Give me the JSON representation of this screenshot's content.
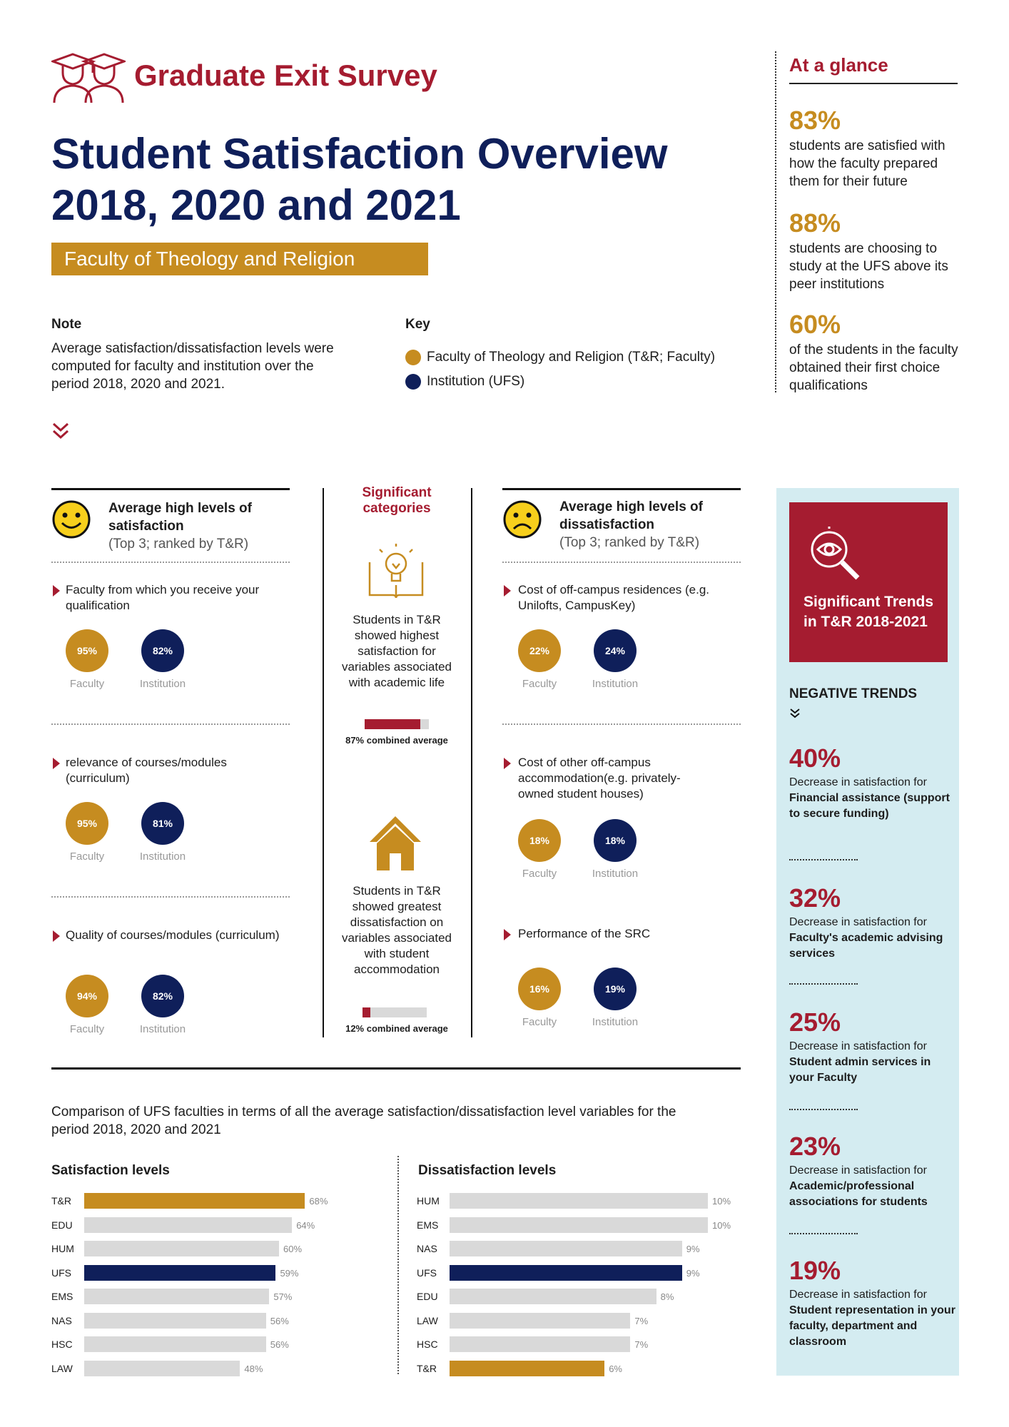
{
  "header": {
    "brand": "Graduate Exit Survey",
    "title_line1": "Student Satisfaction Overview",
    "title_line2": "2018, 2020 and 2021",
    "faculty": "Faculty of Theology and Religion"
  },
  "note": {
    "heading": "Note",
    "text": "Average satisfaction/dissatisfaction levels were computed for faculty and institution over the period 2018, 2020 and 2021."
  },
  "key": {
    "heading": "Key",
    "items": [
      {
        "label": "Faculty of Theology and Religion (T&R; Faculty)",
        "color": "#c68c20"
      },
      {
        "label": "Institution (UFS)",
        "color": "#0f1f5a"
      }
    ]
  },
  "glance": {
    "title": "At a glance",
    "items": [
      {
        "pct": "83%",
        "text": "students are satisfied with how the faculty prepared them for their future"
      },
      {
        "pct": "88%",
        "text": "students are choosing to study at the UFS above its peer institutions"
      },
      {
        "pct": "60%",
        "text": "of the students in the faculty obtained their first choice qualifications"
      }
    ]
  },
  "satisfaction": {
    "heading": "Average high levels of satisfaction",
    "sub": "(Top 3; ranked by T&R)",
    "items": [
      {
        "text": "Faculty from which you receive your qualification",
        "faculty": "95%",
        "institution": "82%"
      },
      {
        "text": "relevance of courses/modules (curriculum)",
        "faculty": "95%",
        "institution": "81%"
      },
      {
        "text": "Quality of courses/modules (curriculum)",
        "faculty": "94%",
        "institution": "82%"
      }
    ],
    "faculty_label": "Faculty",
    "institution_label": "Institution"
  },
  "significant": {
    "heading": "Significant categories",
    "academic_text": "Students in T&R showed  highest satisfaction for variables associated with academic life",
    "academic_caption": "87% combined average",
    "academic_value": 0.87,
    "accommodation_text": "Students in T&R showed  greatest dissatisfaction on variables associated with student accommodation",
    "accommodation_caption": "12% combined average",
    "accommodation_value": 0.12
  },
  "dissatisfaction": {
    "heading": "Average high levels of dissatisfaction",
    "sub": "(Top 3; ranked by T&R)",
    "items": [
      {
        "text": "Cost of off-campus residences (e.g. Unilofts, CampusKey)",
        "faculty": "22%",
        "institution": "24%"
      },
      {
        "text": "Cost of other off-campus accommodation(e.g. privately-owned student houses)",
        "faculty": "18%",
        "institution": "18%"
      },
      {
        "text": "Performance of the SRC",
        "faculty": "16%",
        "institution": "19%"
      }
    ]
  },
  "trends": {
    "box_title": "Significant Trends in T&R 2018-2021",
    "negative_heading": "NEGATIVE TRENDS",
    "items": [
      {
        "pct": "40%",
        "lead": "Decrease in satisfaction for",
        "bold": "Financial assistance (support to secure funding)"
      },
      {
        "pct": "32%",
        "lead": "Decrease in satisfaction for",
        "bold": "Faculty's academic advising services"
      },
      {
        "pct": "25%",
        "lead": "Decrease in satisfaction for",
        "bold": "Student admin services in your Faculty"
      },
      {
        "pct": "23%",
        "lead": "Decrease in satisfaction for",
        "bold": "Academic/professional associations for students"
      },
      {
        "pct": "19%",
        "lead": "Decrease in satisfaction for",
        "bold": "Student representation in your faculty, department and classroom"
      }
    ]
  },
  "comparison": {
    "text": "Comparison of UFS faculties in terms of all the average satisfaction/dissatisfaction level variables for the period 2018, 2020 and 2021"
  },
  "chart_data": [
    {
      "type": "bar",
      "title": "Satisfaction levels",
      "categories": [
        "T&R",
        "EDU",
        "HUM",
        "UFS",
        "EMS",
        "NAS",
        "HSC",
        "LAW"
      ],
      "values": [
        68,
        64,
        60,
        59,
        57,
        56,
        56,
        48
      ],
      "labels": [
        "68%",
        "64%",
        "60%",
        "59%",
        "57%",
        "56%",
        "56%",
        "48%"
      ],
      "highlight": {
        "T&R": "#c68c20",
        "UFS": "#0f1f5a"
      },
      "base_color": "#d9d9d9",
      "xlim": [
        0,
        80
      ]
    },
    {
      "type": "bar",
      "title": "Dissatisfaction levels",
      "categories": [
        "HUM",
        "EMS",
        "NAS",
        "UFS",
        "EDU",
        "LAW",
        "HSC",
        "T&R"
      ],
      "values": [
        10,
        10,
        9,
        9,
        8,
        7,
        7,
        6
      ],
      "labels": [
        "10%",
        "10%",
        "9%",
        "9%",
        "8%",
        "7%",
        "7%",
        "6%"
      ],
      "highlight": {
        "T&R": "#c68c20",
        "UFS": "#0f1f5a"
      },
      "base_color": "#d9d9d9",
      "xlim": [
        0,
        10
      ]
    }
  ]
}
